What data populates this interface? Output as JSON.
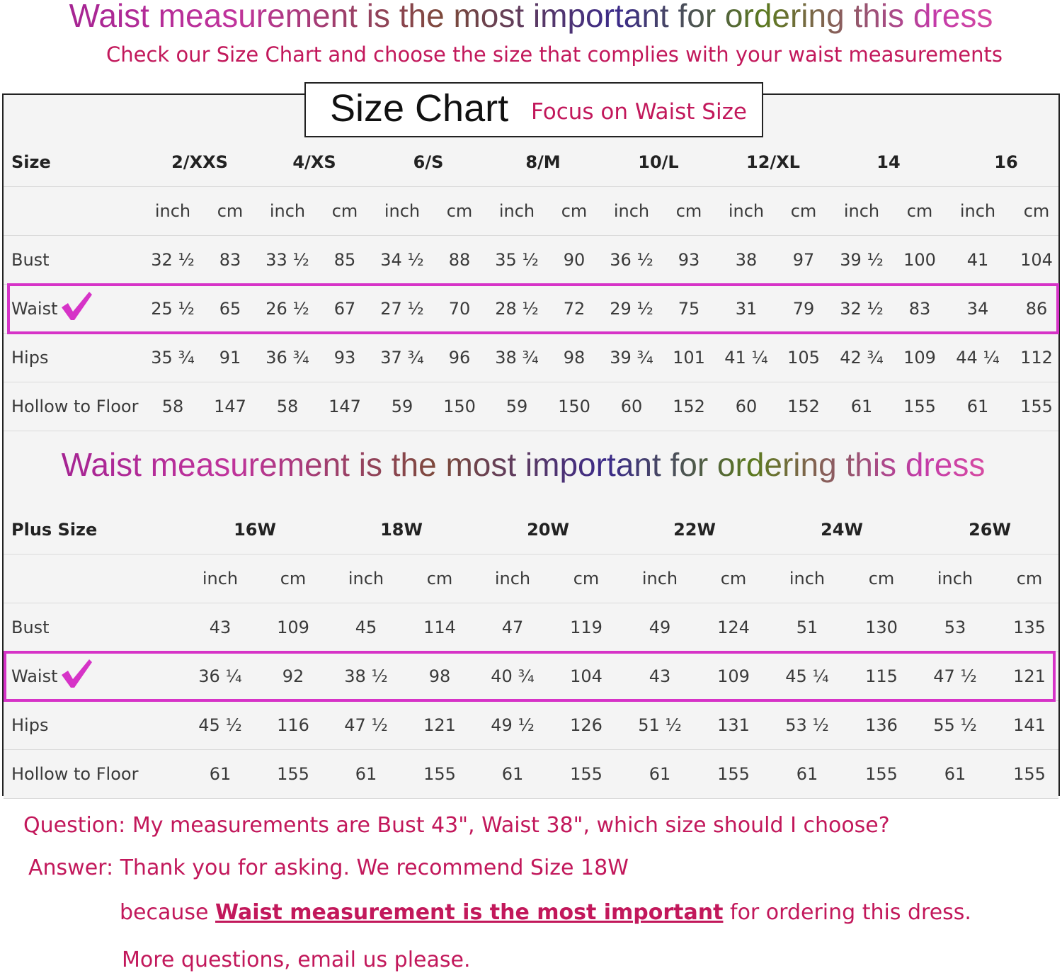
{
  "header": {
    "headline": "Waist measurement is the most important for ordering this dress",
    "subheadline": "Check our Size Chart and choose the size that complies with your waist measurements"
  },
  "chart": {
    "title": "Size Chart",
    "title_note": "Focus on Waist Size",
    "mid_headline": "Waist measurement is the most important for ordering this dress",
    "standard": {
      "header_label": "Size",
      "sizes": [
        "2/XXS",
        "4/XS",
        "6/S",
        "8/M",
        "10/L",
        "12/XL",
        "14",
        "16"
      ],
      "unit_labels": [
        "inch",
        "cm",
        "inch",
        "cm",
        "inch",
        "cm",
        "inch",
        "cm",
        "inch",
        "cm",
        "inch",
        "cm",
        "inch",
        "cm",
        "inch",
        "cm"
      ],
      "rows": [
        {
          "label": "Bust",
          "values": [
            "32 ½",
            "83",
            "33 ½",
            "85",
            "34 ½",
            "88",
            "35 ½",
            "90",
            "36 ½",
            "93",
            "38",
            "97",
            "39 ½",
            "100",
            "41",
            "104"
          ]
        },
        {
          "label": "Waist",
          "values": [
            "25 ½",
            "65",
            "26 ½",
            "67",
            "27 ½",
            "70",
            "28 ½",
            "72",
            "29 ½",
            "75",
            "31",
            "79",
            "32 ½",
            "83",
            "34",
            "86"
          ]
        },
        {
          "label": "Hips",
          "values": [
            "35 ¾",
            "91",
            "36 ¾",
            "93",
            "37 ¾",
            "96",
            "38 ¾",
            "98",
            "39 ¾",
            "101",
            "41 ¼",
            "105",
            "42 ¾",
            "109",
            "44 ¼",
            "112"
          ]
        },
        {
          "label": "Hollow to Floor",
          "values": [
            "58",
            "147",
            "58",
            "147",
            "59",
            "150",
            "59",
            "150",
            "60",
            "152",
            "60",
            "152",
            "61",
            "155",
            "61",
            "155"
          ]
        }
      ]
    },
    "plus": {
      "header_label": "Plus Size",
      "sizes": [
        "16W",
        "18W",
        "20W",
        "22W",
        "24W",
        "26W"
      ],
      "unit_labels": [
        "inch",
        "cm",
        "inch",
        "cm",
        "inch",
        "cm",
        "inch",
        "cm",
        "inch",
        "cm",
        "inch",
        "cm"
      ],
      "rows": [
        {
          "label": "Bust",
          "values": [
            "43",
            "109",
            "45",
            "114",
            "47",
            "119",
            "49",
            "124",
            "51",
            "130",
            "53",
            "135"
          ]
        },
        {
          "label": "Waist",
          "values": [
            "36 ¼",
            "92",
            "38 ½",
            "98",
            "40 ¾",
            "104",
            "43",
            "109",
            "45 ¼",
            "115",
            "47 ½",
            "121"
          ]
        },
        {
          "label": "Hips",
          "values": [
            "45 ½",
            "116",
            "47 ½",
            "121",
            "49 ½",
            "126",
            "51 ½",
            "131",
            "53 ½",
            "136",
            "55 ½",
            "141"
          ]
        },
        {
          "label": "Hollow to Floor",
          "values": [
            "61",
            "155",
            "61",
            "155",
            "61",
            "155",
            "61",
            "155",
            "61",
            "155",
            "61",
            "155"
          ]
        }
      ]
    },
    "highlight_color": "#d633c7",
    "check_icon": "checkmark-icon"
  },
  "faq": {
    "question": "Question: My measurements are Bust 43\", Waist 38\", which size should I choose?",
    "answer": "Answer: Thank you for asking. We recommend Size 18W",
    "because_prefix": "because",
    "because_emphasis": "Waist measurement is the most important",
    "because_suffix": "for ordering this dress.",
    "contact": "More questions, email us please."
  },
  "colors": {
    "accent": "#c2185b",
    "table_bg": "#f4f4f4",
    "highlight": "#d633c7"
  }
}
